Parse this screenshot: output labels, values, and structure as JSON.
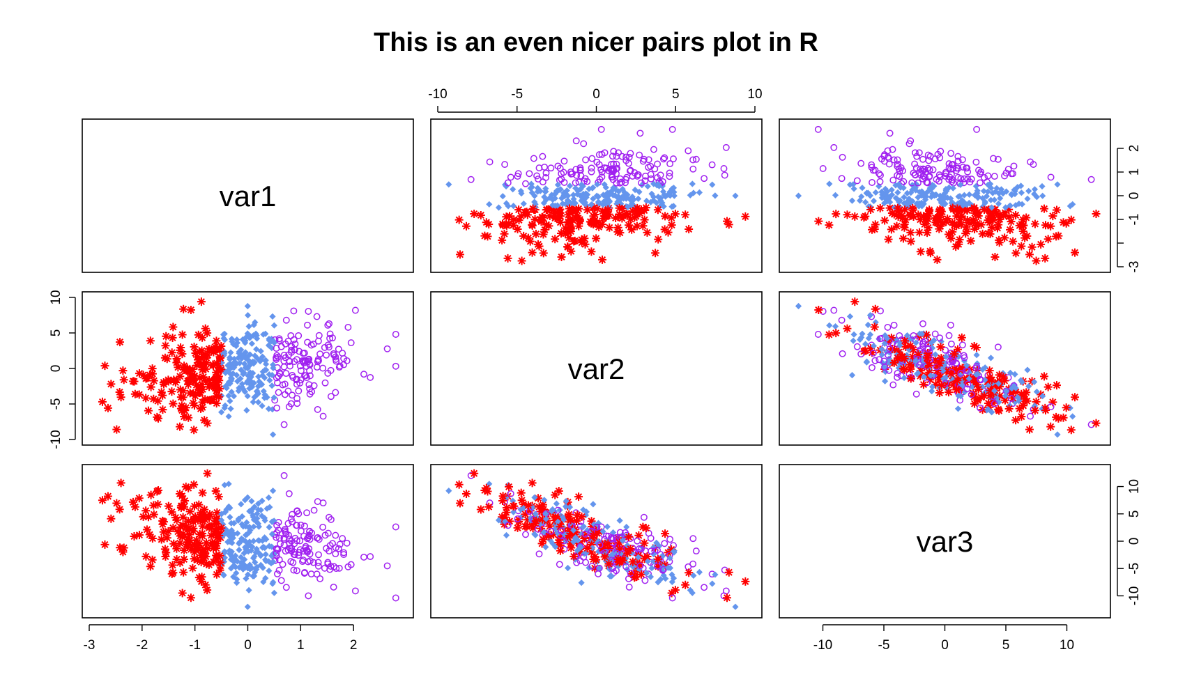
{
  "chart_data": {
    "type": "scatter",
    "subtype": "pairs",
    "title": "This is an even nicer pairs plot in R",
    "variables": [
      "var1",
      "var2",
      "var3"
    ],
    "ranges": {
      "var1": [
        -3,
        3
      ],
      "var2": [
        -10,
        10
      ],
      "var3": [
        -13,
        13
      ]
    },
    "ticks": {
      "var1": [
        -3,
        -2,
        -1,
        0,
        1,
        2
      ],
      "var1_right": [
        -3,
        -1,
        0,
        1,
        2
      ],
      "var2": [
        -10,
        -5,
        0,
        5,
        10
      ],
      "var3": [
        -10,
        -5,
        0,
        5,
        10
      ]
    },
    "tick_labels_right_var1": [
      "-3",
      "",
      "-1",
      "0",
      "1",
      "2"
    ],
    "grid": false,
    "legend": "none",
    "groups": [
      {
        "rule": "var1 < -0.5",
        "marker": "asterisk",
        "color": "#ff0000"
      },
      {
        "rule": "-0.5 <= var1 <= 0.5",
        "marker": "diamond",
        "color": "#6495ed"
      },
      {
        "rule": "var1 > 0.5",
        "marker": "circle",
        "color": "#a020f0"
      }
    ],
    "n_points": 500,
    "points": {
      "var1": [
        -2.72,
        -2.45,
        -2.3,
        -2.1,
        -1.95,
        -1.8,
        -1.7,
        -1.6,
        -1.5,
        -1.4,
        -1.3,
        -1.2,
        -1.1,
        -1.0,
        -0.9,
        -0.8,
        -0.7,
        -0.6,
        -0.55,
        -0.45,
        -0.3,
        -0.15,
        0.0,
        0.15,
        0.3,
        0.45,
        0.55,
        0.7,
        0.9,
        1.1,
        1.3,
        1.5,
        1.75,
        2.0,
        2.3,
        2.6,
        2.75
      ],
      "var2": [
        -5.0,
        -5.5,
        3.0,
        -3.5,
        2.0,
        -9.5,
        0.5,
        -6.0,
        4.0,
        6.0,
        3.5,
        -2.0,
        7.0,
        1.0,
        -8.5,
        -4.0,
        5.0,
        -3.0,
        8.0,
        -6.0,
        9.0,
        -9.5,
        -2.0,
        6.0,
        -9.8,
        3.0,
        9.0,
        -5.0,
        7.5,
        4.0,
        -4.5,
        5.0,
        -6.0,
        8.5,
        -2.0,
        3.0,
        -3.5
      ]
    }
  }
}
